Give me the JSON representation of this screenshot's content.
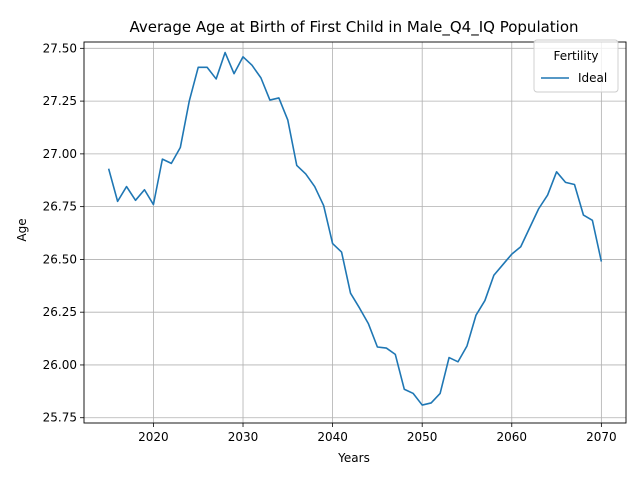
{
  "chart_data": {
    "type": "line",
    "title": "Average Age at Birth of First Child in Male_Q4_IQ Population",
    "xlabel": "Years",
    "ylabel": "Age",
    "xlim": [
      2012.25,
      2072.75
    ],
    "ylim": [
      25.725,
      27.53
    ],
    "x_ticks": [
      2020,
      2030,
      2040,
      2050,
      2060,
      2070
    ],
    "y_ticks": [
      25.75,
      26.0,
      26.25,
      26.5,
      26.75,
      27.0,
      27.25,
      27.5
    ],
    "x_tick_labels": [
      "2020",
      "2030",
      "2040",
      "2050",
      "2060",
      "2070"
    ],
    "y_tick_labels": [
      "25.75",
      "26.00",
      "26.25",
      "26.50",
      "26.75",
      "27.00",
      "27.25",
      "27.50"
    ],
    "grid": true,
    "legend": {
      "title": "Fertility",
      "position": "top-right"
    },
    "series": [
      {
        "name": "Ideal",
        "color": "#1f77b4",
        "x": [
          2015,
          2016,
          2017,
          2018,
          2019,
          2020,
          2021,
          2022,
          2023,
          2024,
          2025,
          2026,
          2027,
          2028,
          2029,
          2030,
          2031,
          2032,
          2033,
          2034,
          2035,
          2036,
          2037,
          2038,
          2039,
          2040,
          2041,
          2042,
          2043,
          2044,
          2045,
          2046,
          2047,
          2048,
          2049,
          2050,
          2051,
          2052,
          2053,
          2054,
          2055,
          2056,
          2057,
          2058,
          2059,
          2060,
          2061,
          2062,
          2063,
          2064,
          2065,
          2066,
          2067,
          2068,
          2069,
          2070
        ],
        "values": [
          26.93,
          26.775,
          26.845,
          26.78,
          26.83,
          26.76,
          26.975,
          26.955,
          27.03,
          27.25,
          27.41,
          27.41,
          27.355,
          27.48,
          27.38,
          27.46,
          27.42,
          27.36,
          27.255,
          27.265,
          27.16,
          26.945,
          26.905,
          26.845,
          26.755,
          26.575,
          26.535,
          26.34,
          26.27,
          26.195,
          26.085,
          26.08,
          26.05,
          25.885,
          25.865,
          25.81,
          25.82,
          25.865,
          26.035,
          26.015,
          26.09,
          26.235,
          26.305,
          26.425,
          26.475,
          26.525,
          26.56,
          26.65,
          26.74,
          26.805,
          26.915,
          26.865,
          26.855,
          26.71,
          26.685,
          26.49
        ]
      }
    ]
  }
}
